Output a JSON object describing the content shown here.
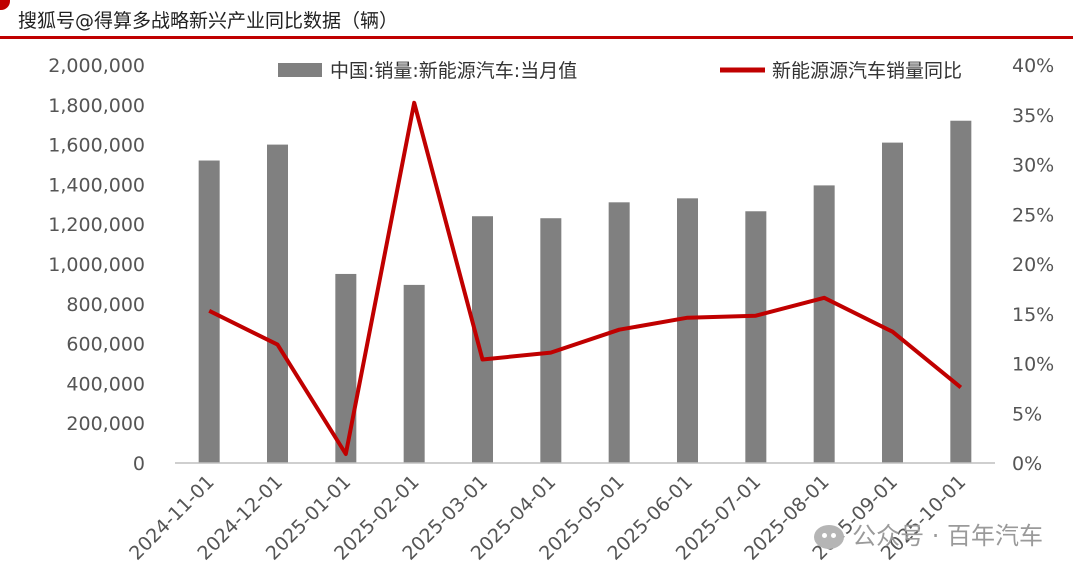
{
  "header": {
    "title": "搜狐号@得算多战略新兴产业同比数据（辆）",
    "accent_color": "#c00000"
  },
  "watermark": {
    "text": "公众号 · 百年汽车",
    "icon": "wechat-icon"
  },
  "chart_data": {
    "type": "bar+line",
    "categories": [
      "2024-11-01",
      "2024-12-01",
      "2025-01-01",
      "2025-02-01",
      "2025-03-01",
      "2025-04-01",
      "2025-05-01",
      "2025-06-01",
      "2025-07-01",
      "2025-08-01",
      "2025-09-01",
      "2025-10-01"
    ],
    "series": [
      {
        "name": "中国:销量:新能源汽车:当月值",
        "type": "bar",
        "axis": "left",
        "color": "#808080",
        "values": [
          1520000,
          1600000,
          950000,
          895000,
          1240000,
          1230000,
          1310000,
          1330000,
          1265000,
          1395000,
          1610000,
          1720000
        ]
      },
      {
        "name": "新能源源汽车销量同比",
        "type": "line",
        "axis": "right",
        "color": "#c00000",
        "values": [
          15.3,
          11.9,
          0.9,
          36.2,
          10.4,
          11.1,
          13.4,
          14.6,
          14.8,
          16.6,
          13.2,
          7.6
        ]
      }
    ],
    "left_axis": {
      "ylim": [
        0,
        2000000
      ],
      "ticks": [
        0,
        200000,
        400000,
        600000,
        800000,
        1000000,
        1200000,
        1400000,
        1600000,
        1800000,
        2000000
      ],
      "tick_labels": [
        "0",
        "200,000",
        "400,000",
        "600,000",
        "800,000",
        "1,000,000",
        "1,200,000",
        "1,400,000",
        "1,600,000",
        "1,800,000",
        "2,000,000"
      ]
    },
    "right_axis": {
      "ylim": [
        0,
        40
      ],
      "ticks": [
        0,
        5,
        10,
        15,
        20,
        25,
        30,
        35,
        40
      ],
      "tick_labels": [
        "0%",
        "5%",
        "10%",
        "15%",
        "20%",
        "25%",
        "30%",
        "35%",
        "40%"
      ]
    },
    "legend_position": "top",
    "grid": false
  }
}
